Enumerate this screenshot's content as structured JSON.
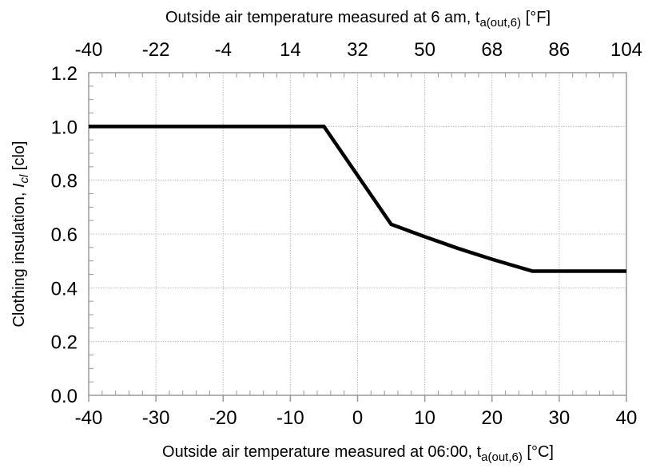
{
  "chart_data": {
    "type": "line",
    "xlabel": "Outside air temperature measured at 06:00, t",
    "xlabel_sub": "a(out,6)",
    "xlabel_unit": " [°C]",
    "x2label": "Outside air temperature measured at 6 am, t",
    "x2label_sub": "a(out,6)",
    "x2label_unit": " [°F]",
    "ylabel": "Clothing insulation, ",
    "ylabel_symbol": "I",
    "ylabel_sub": "cl",
    "ylabel_unit": " [clo]",
    "xlim": [
      -40,
      40
    ],
    "ylim": [
      0,
      1.2
    ],
    "x_ticks": [
      "-40",
      "-30",
      "-20",
      "-10",
      "0",
      "10",
      "20",
      "30",
      "40"
    ],
    "x2_ticks": [
      "-40",
      "-22",
      "-4",
      "14",
      "32",
      "50",
      "68",
      "86",
      "104"
    ],
    "y_ticks": [
      "0.0",
      "0.2",
      "0.4",
      "0.6",
      "0.8",
      "1.0",
      "1.2"
    ],
    "grid": true,
    "line_color": "#000000",
    "series": [
      {
        "x": [
          -40,
          -5,
          5,
          10,
          15,
          20,
          26,
          40
        ],
        "y": [
          1.0,
          1.0,
          0.636,
          0.59,
          0.546,
          0.506,
          0.462,
          0.462
        ]
      }
    ]
  }
}
